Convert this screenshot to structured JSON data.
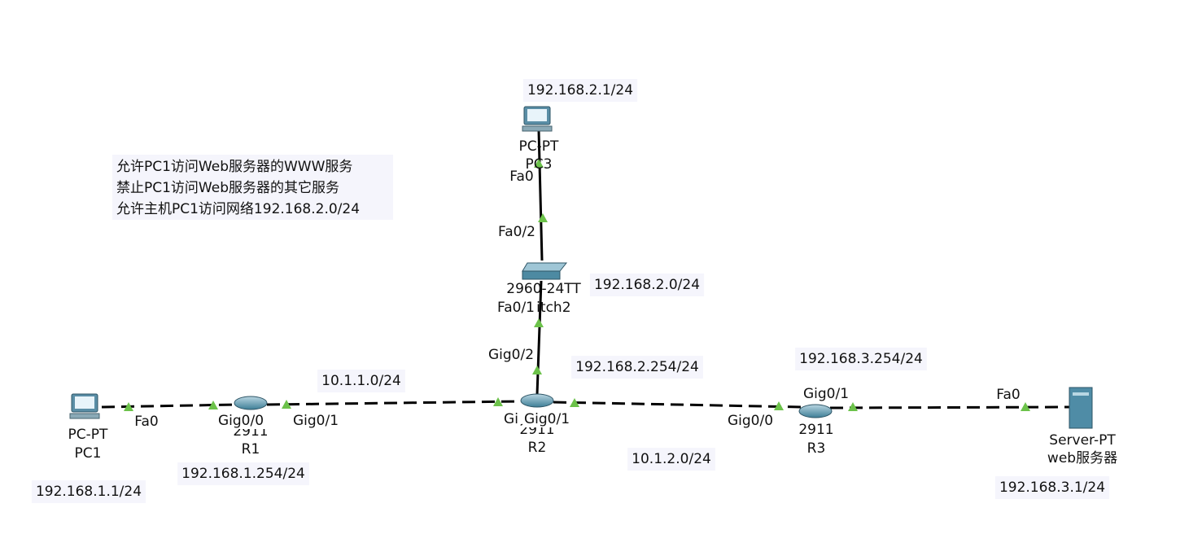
{
  "annotation": [
    "允许PC1访问Web服务器的WWW服务",
    "禁止PC1访问Web服务器的其它服务",
    "允许主机PC1访问网络192.168.2.0/24"
  ],
  "nodes": [
    {
      "model": "PC-PT",
      "name": "PC1"
    },
    {
      "model": "2911",
      "name": "R1"
    },
    {
      "model": "2911",
      "name": "R2"
    },
    {
      "model": "2911",
      "name": "R3"
    },
    {
      "model": "Server-PT",
      "name": "web服务器"
    },
    {
      "model": "2960-24TT",
      "name": "Switch2"
    },
    {
      "model": "PC-PT",
      "name": "PC3"
    }
  ],
  "interfaces": [
    "Fa0",
    "Gig0/0",
    "Gig0/1",
    "Gi",
    "Gig0/1",
    "Gig0/0",
    "Gig0/1",
    "Fa0",
    "Fa0/1",
    "Gig0/2",
    "Fa0/2",
    "Fa0"
  ],
  "notes": [
    "192.168.2.1/24",
    "192.168.2.0/24",
    "192.168.2.254/24",
    "10.1.1.0/24",
    "192.168.3.254/24",
    "192.168.1.254/24",
    "10.1.2.0/24",
    "192.168.1.1/24",
    "192.168.3.1/24"
  ]
}
